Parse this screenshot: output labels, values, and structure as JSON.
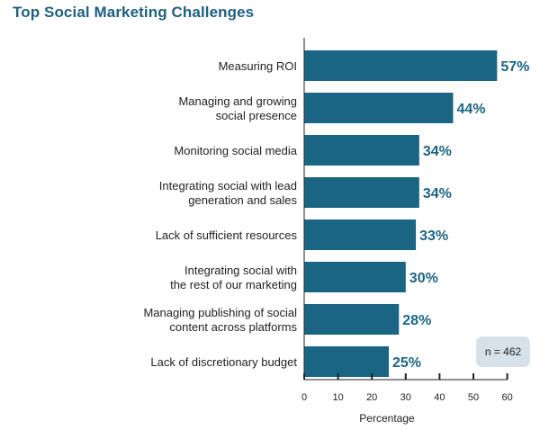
{
  "title": "Top Social Marketing Challenges",
  "note": "n = 462",
  "colors": {
    "bar": "#1b6584",
    "value_text": "#1b6584",
    "title": "#1f5f80",
    "note_bg": "#d6e1e9"
  },
  "chart_data": {
    "type": "bar",
    "orientation": "horizontal",
    "title": "Top Social Marketing Challenges",
    "xlabel": "Percentage",
    "ylabel": "",
    "xlim": [
      0,
      60
    ],
    "xticks": [
      0,
      10,
      20,
      30,
      40,
      50,
      60
    ],
    "grid": false,
    "categories": [
      [
        "Measuring ROI"
      ],
      [
        "Managing and growing",
        "social presence"
      ],
      [
        "Monitoring social media"
      ],
      [
        "Integrating social with lead",
        "generation and sales"
      ],
      [
        "Lack of sufficient resources"
      ],
      [
        "Integrating social with",
        "the rest of our marketing"
      ],
      [
        "Managing publishing of social",
        "content across platforms"
      ],
      [
        "Lack of discretionary budget"
      ]
    ],
    "values": [
      57,
      44,
      34,
      34,
      33,
      30,
      28,
      25
    ],
    "value_labels": [
      "57%",
      "44%",
      "34%",
      "34%",
      "33%",
      "30%",
      "28%",
      "25%"
    ]
  }
}
